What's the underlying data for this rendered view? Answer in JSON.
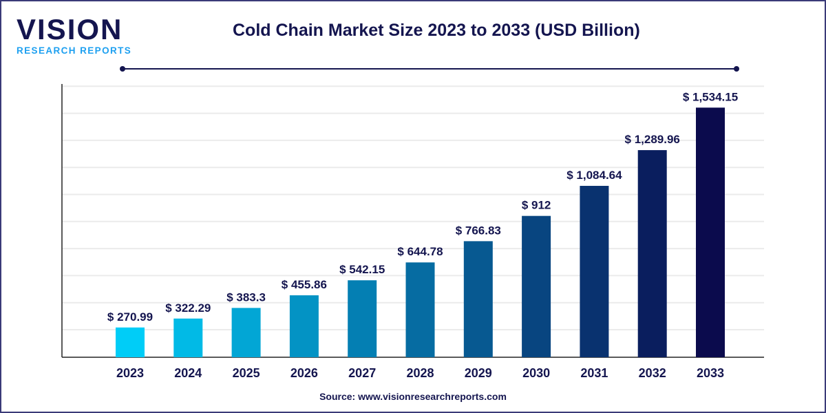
{
  "logo": {
    "main": "VISION",
    "sub": "RESEARCH REPORTS"
  },
  "chart_data": {
    "type": "bar",
    "title": "Cold Chain Market Size 2023 to 2033 (USD Billion)",
    "categories": [
      "2023",
      "2024",
      "2025",
      "2026",
      "2027",
      "2028",
      "2029",
      "2030",
      "2031",
      "2032",
      "2033"
    ],
    "values": [
      270.99,
      322.29,
      383.3,
      455.86,
      542.15,
      644.78,
      766.83,
      912,
      1084.64,
      1289.96,
      1534.15
    ],
    "data_labels": [
      "$ 270.99",
      "$ 322.29",
      "$ 383.3",
      "$ 455.86",
      "$ 542.15",
      "$ 644.78",
      "$ 766.83",
      "$ 912",
      "$ 1,084.64",
      "$ 1,289.96",
      "$ 1,534.15"
    ],
    "xlabel": "",
    "ylabel": "",
    "ylim": [
      100,
      1670
    ],
    "grid": true,
    "colors": {
      "start": "#00cdf7",
      "end": "#0b0b4d",
      "text": "#14154f",
      "grid": "#ebebeb"
    }
  },
  "source": "Source: www.visionresearchreports.com"
}
